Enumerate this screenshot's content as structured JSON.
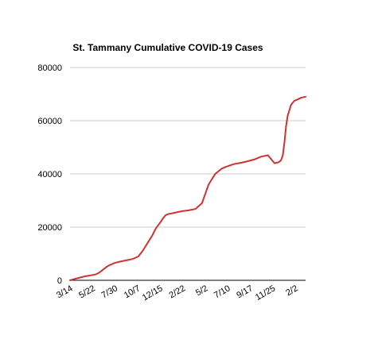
{
  "chart_data": {
    "type": "line",
    "title": "St. Tammany Cumulative COVID-19 Cases",
    "xlabel": "",
    "ylabel": "",
    "ylim": [
      0,
      80000
    ],
    "yticks": [
      0,
      20000,
      40000,
      60000,
      80000
    ],
    "ytick_labels": [
      "0",
      "20000",
      "40000",
      "60000",
      "80000"
    ],
    "xtick_labels": [
      "3/14",
      "5/22",
      "7/30",
      "10/7",
      "12/15",
      "2/22",
      "5/2",
      "7/10",
      "9/17",
      "11/25",
      "2/2"
    ],
    "x_range_days": [
      0,
      714
    ],
    "grid": true,
    "legend": "none",
    "series": [
      {
        "color": "#cc3333",
        "x": [
          0,
          14,
          30,
          45,
          69,
          80,
          90,
          110,
          120,
          135,
          150,
          170,
          190,
          207,
          220,
          235,
          250,
          260,
          275,
          280,
          290,
          300,
          310,
          320,
          340,
          360,
          380,
          400,
          420,
          440,
          460,
          470,
          480,
          485,
          490,
          495,
          500,
          510,
          520,
          540,
          560,
          580,
          600,
          620,
          630,
          635,
          640,
          645,
          650,
          655,
          660,
          665,
          670,
          680,
          690,
          700,
          714
        ],
        "y": [
          0,
          500,
          1000,
          1500,
          2000,
          2300,
          3000,
          5000,
          5700,
          6500,
          7000,
          7500,
          8000,
          9000,
          11000,
          14000,
          17000,
          19500,
          22000,
          23000,
          24500,
          25000,
          25200,
          25500,
          26000,
          26300,
          26800,
          29000,
          36000,
          40000,
          42000,
          42500,
          43000,
          43200,
          43400,
          43600,
          43800,
          44000,
          44200,
          44800,
          45500,
          46500,
          47000,
          44000,
          44300,
          44600,
          45200,
          47000,
          52000,
          58000,
          62000,
          64000,
          66000,
          67500,
          68000,
          68600,
          69000
        ]
      }
    ]
  }
}
